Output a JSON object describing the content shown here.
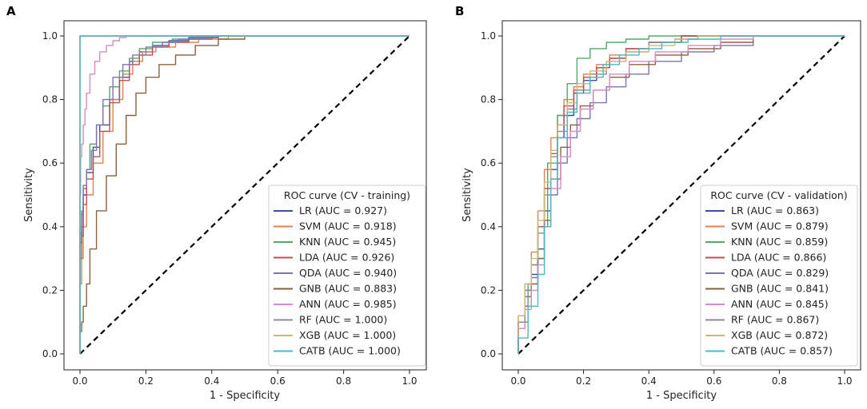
{
  "chart_data": [
    {
      "panel_label": "A",
      "type": "line",
      "xlabel": "1 - Specificity",
      "ylabel": "Sensitivity",
      "xlim": [
        0,
        1
      ],
      "ylim": [
        0,
        1
      ],
      "xticks": [
        "0.0",
        "0.2",
        "0.4",
        "0.6",
        "0.8",
        "1.0"
      ],
      "yticks": [
        "0.0",
        "0.2",
        "0.4",
        "0.6",
        "0.8",
        "1.0"
      ],
      "legend_title": "ROC curve (CV - training)",
      "legend_position": "lower-right",
      "reference_line": {
        "x": [
          0,
          1
        ],
        "y": [
          0,
          1
        ],
        "style": "dashed",
        "color": "#000000"
      },
      "series": [
        {
          "name": "LR",
          "label": "LR (AUC = 0.927)",
          "color": "#3b4fa0",
          "x": [
            0,
            0.005,
            0.01,
            0.02,
            0.04,
            0.06,
            0.09,
            0.12,
            0.15,
            0.18,
            0.22,
            0.27,
            0.33,
            0.42,
            0.5,
            1.0
          ],
          "y": [
            0,
            0.35,
            0.4,
            0.5,
            0.57,
            0.65,
            0.72,
            0.8,
            0.87,
            0.92,
            0.95,
            0.97,
            0.985,
            0.995,
            1.0,
            1.0
          ]
        },
        {
          "name": "SVM",
          "label": "SVM (AUC = 0.918)",
          "color": "#dd8452",
          "x": [
            0,
            0.005,
            0.01,
            0.02,
            0.04,
            0.07,
            0.1,
            0.13,
            0.16,
            0.19,
            0.23,
            0.29,
            0.36,
            0.45,
            0.57,
            1.0
          ],
          "y": [
            0,
            0.22,
            0.3,
            0.4,
            0.5,
            0.6,
            0.7,
            0.8,
            0.88,
            0.92,
            0.95,
            0.965,
            0.98,
            0.99,
            1.0,
            1.0
          ]
        },
        {
          "name": "KNN",
          "label": "KNN (AUC = 0.945)",
          "color": "#55a868",
          "x": [
            0,
            0.005,
            0.01,
            0.02,
            0.03,
            0.05,
            0.07,
            0.09,
            0.12,
            0.15,
            0.18,
            0.22,
            0.28,
            0.35,
            0.42,
            1.0
          ],
          "y": [
            0,
            0.4,
            0.44,
            0.52,
            0.58,
            0.66,
            0.72,
            0.78,
            0.84,
            0.89,
            0.93,
            0.96,
            0.98,
            0.99,
            1.0,
            1.0
          ]
        },
        {
          "name": "LDA",
          "label": "LDA (AUC = 0.926)",
          "color": "#c44e52",
          "x": [
            0,
            0.005,
            0.01,
            0.02,
            0.04,
            0.06,
            0.09,
            0.12,
            0.15,
            0.18,
            0.22,
            0.27,
            0.33,
            0.4,
            0.48,
            1.0
          ],
          "y": [
            0,
            0.3,
            0.37,
            0.47,
            0.55,
            0.62,
            0.7,
            0.79,
            0.86,
            0.91,
            0.94,
            0.965,
            0.98,
            0.99,
            1.0,
            1.0
          ]
        },
        {
          "name": "QDA",
          "label": "QDA (AUC = 0.940)",
          "color": "#8172b3",
          "x": [
            0,
            0.005,
            0.01,
            0.02,
            0.035,
            0.05,
            0.07,
            0.1,
            0.13,
            0.16,
            0.2,
            0.25,
            0.3,
            0.38,
            0.45,
            1.0
          ],
          "y": [
            0,
            0.38,
            0.45,
            0.53,
            0.58,
            0.64,
            0.72,
            0.8,
            0.87,
            0.91,
            0.94,
            0.965,
            0.98,
            0.99,
            1.0,
            1.0
          ]
        },
        {
          "name": "GNB",
          "label": "GNB (AUC = 0.883)",
          "color": "#8c613c",
          "x": [
            0,
            0.005,
            0.01,
            0.02,
            0.03,
            0.05,
            0.08,
            0.11,
            0.14,
            0.17,
            0.2,
            0.24,
            0.29,
            0.35,
            0.42,
            0.5,
            0.57,
            1.0
          ],
          "y": [
            0,
            0.07,
            0.1,
            0.15,
            0.22,
            0.33,
            0.45,
            0.56,
            0.66,
            0.75,
            0.82,
            0.87,
            0.91,
            0.94,
            0.97,
            0.99,
            1.0,
            1.0
          ]
        },
        {
          "name": "ANN",
          "label": "ANN (AUC = 0.985)",
          "color": "#da8bc3",
          "x": [
            0,
            0.002,
            0.005,
            0.01,
            0.015,
            0.02,
            0.03,
            0.045,
            0.06,
            0.08,
            0.1,
            0.12,
            0.14,
            0.17,
            1.0
          ],
          "y": [
            0,
            0.5,
            0.62,
            0.66,
            0.72,
            0.77,
            0.82,
            0.88,
            0.92,
            0.95,
            0.97,
            0.985,
            0.995,
            1.0,
            1.0
          ]
        },
        {
          "name": "RF",
          "label": "RF (AUC = 1.000)",
          "color": "#8c8c8c",
          "x": [
            0,
            0,
            1.0
          ],
          "y": [
            0,
            1.0,
            1.0
          ]
        },
        {
          "name": "XGB",
          "label": "XGB (AUC = 1.000)",
          "color": "#ccb974",
          "x": [
            0,
            0,
            1.0
          ],
          "y": [
            0,
            1.0,
            1.0
          ]
        },
        {
          "name": "CATB",
          "label": "CATB (AUC = 1.000)",
          "color": "#4cb8c4",
          "x": [
            0,
            0,
            0.005,
            1.0
          ],
          "y": [
            0,
            0.99,
            1.0,
            1.0
          ]
        }
      ]
    },
    {
      "panel_label": "B",
      "type": "line",
      "xlabel": "1 - Specificity",
      "ylabel": "Sensitivity",
      "xlim": [
        0,
        1
      ],
      "ylim": [
        0,
        1
      ],
      "xticks": [
        "0.0",
        "0.2",
        "0.4",
        "0.6",
        "0.8",
        "1.0"
      ],
      "yticks": [
        "0.0",
        "0.2",
        "0.4",
        "0.6",
        "0.8",
        "1.0"
      ],
      "legend_title": "ROC curve (CV - validation)",
      "legend_position": "lower-right",
      "reference_line": {
        "x": [
          0,
          1
        ],
        "y": [
          0,
          1
        ],
        "style": "dashed",
        "color": "#000000"
      },
      "series": [
        {
          "name": "LR",
          "label": "LR (AUC = 0.863)",
          "color": "#3b4fa0",
          "x": [
            0,
            0.02,
            0.04,
            0.06,
            0.08,
            0.1,
            0.12,
            0.14,
            0.17,
            0.2,
            0.24,
            0.28,
            0.33,
            0.4,
            0.5,
            0.7,
            1.0
          ],
          "y": [
            0,
            0.1,
            0.2,
            0.25,
            0.33,
            0.45,
            0.58,
            0.68,
            0.75,
            0.82,
            0.86,
            0.9,
            0.93,
            0.96,
            0.98,
            1.0,
            1.0
          ]
        },
        {
          "name": "SVM",
          "label": "SVM (AUC = 0.879)",
          "color": "#dd8452",
          "x": [
            0,
            0.02,
            0.04,
            0.06,
            0.08,
            0.1,
            0.12,
            0.14,
            0.17,
            0.2,
            0.24,
            0.28,
            0.33,
            0.4,
            0.5,
            0.6,
            1.0
          ],
          "y": [
            0,
            0.12,
            0.22,
            0.32,
            0.45,
            0.58,
            0.68,
            0.75,
            0.8,
            0.84,
            0.88,
            0.91,
            0.94,
            0.96,
            0.98,
            1.0,
            1.0
          ]
        },
        {
          "name": "KNN",
          "label": "KNN (AUC = 0.859)",
          "color": "#55a868",
          "x": [
            0,
            0.03,
            0.06,
            0.09,
            0.12,
            0.15,
            0.18,
            0.22,
            0.27,
            0.33,
            0.4,
            0.48,
            0.58,
            1.0
          ],
          "y": [
            0,
            0.1,
            0.22,
            0.4,
            0.6,
            0.75,
            0.85,
            0.93,
            0.96,
            0.98,
            0.99,
            1.0,
            1.0,
            1.0
          ]
        },
        {
          "name": "LDA",
          "label": "LDA (AUC = 0.866)",
          "color": "#c44e52",
          "x": [
            0,
            0.02,
            0.04,
            0.06,
            0.08,
            0.1,
            0.12,
            0.14,
            0.17,
            0.2,
            0.24,
            0.28,
            0.33,
            0.4,
            0.5,
            0.6,
            1.0
          ],
          "y": [
            0,
            0.1,
            0.18,
            0.28,
            0.4,
            0.52,
            0.63,
            0.72,
            0.78,
            0.83,
            0.87,
            0.9,
            0.93,
            0.96,
            0.98,
            1.0,
            1.0
          ]
        },
        {
          "name": "QDA",
          "label": "QDA (AUC = 0.829)",
          "color": "#8172b3",
          "x": [
            0,
            0.02,
            0.04,
            0.06,
            0.08,
            0.1,
            0.12,
            0.15,
            0.18,
            0.22,
            0.27,
            0.33,
            0.4,
            0.5,
            0.6,
            0.72,
            1.0
          ],
          "y": [
            0,
            0.1,
            0.18,
            0.24,
            0.3,
            0.4,
            0.5,
            0.6,
            0.68,
            0.74,
            0.79,
            0.84,
            0.88,
            0.92,
            0.95,
            0.97,
            1.0
          ]
        },
        {
          "name": "GNB",
          "label": "GNB (AUC = 0.841)",
          "color": "#8c613c",
          "x": [
            0,
            0.02,
            0.04,
            0.06,
            0.08,
            0.1,
            0.13,
            0.16,
            0.19,
            0.23,
            0.28,
            0.34,
            0.42,
            0.52,
            0.62,
            0.72,
            1.0
          ],
          "y": [
            0,
            0.08,
            0.15,
            0.22,
            0.3,
            0.42,
            0.55,
            0.65,
            0.72,
            0.78,
            0.83,
            0.87,
            0.91,
            0.94,
            0.96,
            0.98,
            1.0
          ]
        },
        {
          "name": "ANN",
          "label": "ANN (AUC = 0.845)",
          "color": "#da8bc3",
          "x": [
            0,
            0.02,
            0.04,
            0.06,
            0.08,
            0.1,
            0.13,
            0.16,
            0.19,
            0.23,
            0.28,
            0.34,
            0.42,
            0.52,
            0.62,
            0.72,
            1.0
          ],
          "y": [
            0,
            0.08,
            0.14,
            0.2,
            0.28,
            0.4,
            0.52,
            0.62,
            0.7,
            0.77,
            0.83,
            0.88,
            0.92,
            0.95,
            0.97,
            0.99,
            1.0
          ]
        },
        {
          "name": "RF",
          "label": "RF (AUC = 0.867)",
          "color": "#8c8c8c",
          "x": [
            0,
            0.02,
            0.04,
            0.06,
            0.08,
            0.1,
            0.12,
            0.15,
            0.18,
            0.22,
            0.27,
            0.33,
            0.4,
            0.48,
            0.55,
            0.65,
            1.0
          ],
          "y": [
            0,
            0.1,
            0.2,
            0.28,
            0.38,
            0.5,
            0.62,
            0.7,
            0.77,
            0.83,
            0.88,
            0.92,
            0.95,
            0.98,
            0.99,
            1.0,
            1.0
          ]
        },
        {
          "name": "XGB",
          "label": "XGB (AUC = 0.872)",
          "color": "#ccb974",
          "x": [
            0,
            0.02,
            0.04,
            0.06,
            0.08,
            0.1,
            0.12,
            0.15,
            0.18,
            0.22,
            0.27,
            0.33,
            0.4,
            0.48,
            0.55,
            0.65,
            1.0
          ],
          "y": [
            0,
            0.12,
            0.22,
            0.3,
            0.42,
            0.54,
            0.64,
            0.72,
            0.79,
            0.85,
            0.89,
            0.92,
            0.95,
            0.97,
            0.99,
            1.0,
            1.0
          ]
        },
        {
          "name": "CATB",
          "label": "CATB (AUC = 0.857)",
          "color": "#4cb8c4",
          "x": [
            0,
            0.03,
            0.06,
            0.08,
            0.1,
            0.12,
            0.15,
            0.18,
            0.22,
            0.26,
            0.31,
            0.37,
            0.44,
            0.52,
            0.62,
            1.0
          ],
          "y": [
            0,
            0.05,
            0.15,
            0.25,
            0.4,
            0.55,
            0.68,
            0.76,
            0.82,
            0.87,
            0.91,
            0.94,
            0.96,
            0.98,
            0.99,
            1.0
          ]
        }
      ]
    }
  ]
}
